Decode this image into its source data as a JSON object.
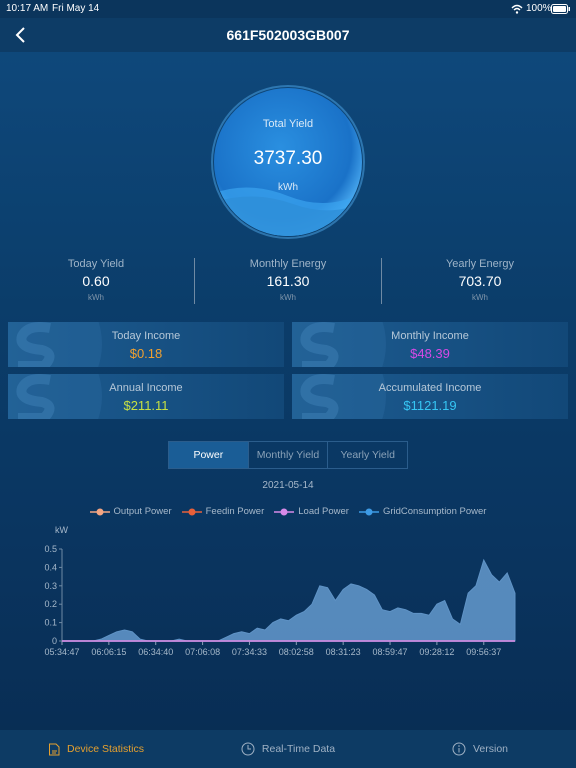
{
  "status_bar": {
    "time": "10:17 AM",
    "date": "Fri May 14",
    "battery": "100%"
  },
  "header": {
    "title": "661F502003GB007"
  },
  "total_yield": {
    "label": "Total Yield",
    "value": "3737.30",
    "unit": "kWh"
  },
  "stats": [
    {
      "label": "Today Yield",
      "value": "0.60",
      "unit": "kWh"
    },
    {
      "label": "Monthly Energy",
      "value": "161.30",
      "unit": "kWh"
    },
    {
      "label": "Yearly Energy",
      "value": "703.70",
      "unit": "kWh"
    }
  ],
  "income": [
    {
      "label": "Today Income",
      "value": "$0.18",
      "color": "#f0a030"
    },
    {
      "label": "Monthly Income",
      "value": "$48.39",
      "color": "#d54ae6"
    },
    {
      "label": "Annual Income",
      "value": "$211.11",
      "color": "#c6e043"
    },
    {
      "label": "Accumulated Income",
      "value": "$1121.19",
      "color": "#36c6f4"
    }
  ],
  "tabs": {
    "items": [
      "Power",
      "Monthly Yield",
      "Yearly Yield"
    ],
    "active": 0
  },
  "chart": {
    "type": "area",
    "title": "2021-05-14",
    "y_label": "kW",
    "categories": [
      "05:34:47",
      null,
      null,
      null,
      null,
      null,
      "06:06:15",
      null,
      null,
      null,
      null,
      null,
      "06:34:40",
      null,
      null,
      null,
      null,
      null,
      "07:06:08",
      null,
      null,
      null,
      null,
      null,
      "07:34:33",
      null,
      null,
      null,
      null,
      null,
      "08:02:58",
      null,
      null,
      null,
      null,
      null,
      "08:31:23",
      null,
      null,
      null,
      null,
      null,
      "08:59:47",
      null,
      null,
      null,
      null,
      null,
      "09:28:12",
      null,
      null,
      null,
      null,
      null,
      "09:56:37",
      null,
      null,
      null,
      null
    ],
    "series": [
      {
        "name": "Output Power",
        "color": "#f4a582",
        "fill": "#5f93c6",
        "values": [
          0,
          0,
          0,
          0,
          0,
          0.01,
          0.03,
          0.05,
          0.06,
          0.05,
          0.01,
          0,
          0,
          0,
          0,
          0.01,
          0,
          0,
          0,
          0,
          0,
          0.02,
          0.04,
          0.05,
          0.04,
          0.07,
          0.06,
          0.1,
          0.12,
          0.11,
          0.14,
          0.16,
          0.2,
          0.3,
          0.29,
          0.22,
          0.28,
          0.31,
          0.3,
          0.28,
          0.25,
          0.17,
          0.16,
          0.18,
          0.17,
          0.15,
          0.15,
          0.14,
          0.2,
          0.22,
          0.12,
          0.09,
          0.26,
          0.3,
          0.44,
          0.36,
          0.32,
          0.37,
          0.26
        ]
      },
      {
        "name": "Feedin Power",
        "color": "#e8603a",
        "values": [
          0,
          0,
          0,
          0,
          0,
          0,
          0,
          0,
          0,
          0,
          0,
          0,
          0,
          0,
          0,
          0,
          0,
          0,
          0,
          0,
          0,
          0,
          0,
          0,
          0,
          0,
          0,
          0,
          0,
          0,
          0,
          0,
          0,
          0,
          0,
          0,
          0,
          0,
          0,
          0,
          0,
          0,
          0,
          0,
          0,
          0,
          0,
          0,
          0,
          0,
          0,
          0,
          0,
          0,
          0,
          0,
          0,
          0,
          0
        ]
      },
      {
        "name": "GridConsumption Power",
        "color": "#3d9be6",
        "values": [
          0,
          0,
          0,
          0,
          0,
          0,
          0,
          0,
          0,
          0,
          0,
          0,
          0,
          0,
          0,
          0,
          0,
          0,
          0,
          0,
          0,
          0,
          0,
          0,
          0,
          0,
          0,
          0,
          0,
          0,
          0,
          0,
          0,
          0,
          0,
          0,
          0,
          0,
          0,
          0,
          0,
          0,
          0,
          0,
          0,
          0,
          0,
          0,
          0,
          0,
          0,
          0,
          0,
          0,
          0,
          0,
          0,
          0,
          0
        ]
      },
      {
        "name": "Load Power",
        "color": "#d78ae8",
        "values": [
          0,
          0,
          0,
          0,
          0,
          0,
          0,
          0,
          0,
          0,
          0,
          0,
          0,
          0,
          0,
          0,
          0,
          0,
          0,
          0,
          0,
          0,
          0,
          0,
          0,
          0,
          0,
          0,
          0,
          0,
          0,
          0,
          0,
          0,
          0,
          0,
          0,
          0,
          0,
          0,
          0,
          0,
          0,
          0,
          0,
          0,
          0,
          0,
          0,
          0,
          0,
          0,
          0,
          0,
          0,
          0,
          0,
          0,
          0
        ]
      }
    ],
    "legend_order": [
      0,
      1,
      3,
      2
    ],
    "ylim": [
      0,
      0.5
    ],
    "yticks": [
      0,
      0.1,
      0.2,
      0.3,
      0.4,
      0.5
    ]
  },
  "nav": {
    "items": [
      "Device Statistics",
      "Real-Time Data",
      "Version"
    ],
    "active": 0
  }
}
